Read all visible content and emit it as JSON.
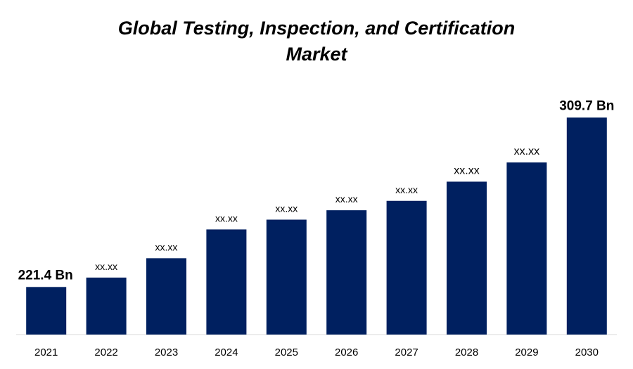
{
  "chart_data": {
    "type": "bar",
    "title_line1": "Global Testing, Inspection, and Certification",
    "title_line2": "Market",
    "categories": [
      "2021",
      "2022",
      "2023",
      "2024",
      "2025",
      "2026",
      "2027",
      "2028",
      "2029",
      "2030"
    ],
    "values": [
      221.4,
      226.3,
      236.4,
      251.4,
      256.5,
      261.4,
      266.3,
      276.3,
      286.3,
      309.7
    ],
    "data_labels": [
      "221.4 Bn",
      "xx.xx",
      "xx.xx",
      "xx.xx",
      "xx.xx",
      "xx.xx",
      "xx.xx",
      "xx.xx",
      "xx.xx",
      "309.7 Bn"
    ],
    "bar_color": "#002060",
    "ylim": [
      196.6,
      319.7
    ],
    "grid": false,
    "legend": "none"
  }
}
